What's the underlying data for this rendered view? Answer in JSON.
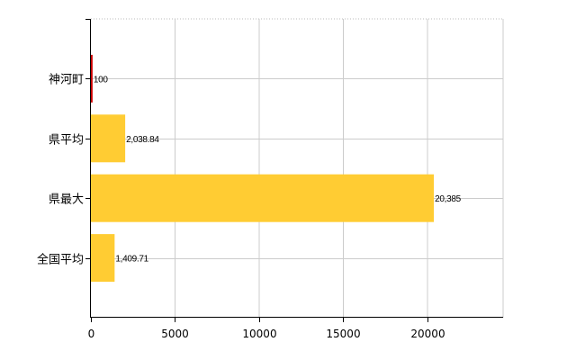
{
  "chart_data": {
    "type": "bar",
    "orientation": "horizontal",
    "categories": [
      "神河町",
      "県平均",
      "県最大",
      "全国平均"
    ],
    "values": [
      100,
      2038.84,
      20385,
      1409.71
    ],
    "value_labels": [
      "100",
      "2,038.84",
      "20,385",
      "1,409.71"
    ],
    "bar_colors": [
      "#cc0000",
      "#ffcc33",
      "#ffcc33",
      "#ffcc33"
    ],
    "x_ticks": [
      0,
      5000,
      10000,
      15000,
      20000
    ],
    "x_tick_labels": [
      "0",
      "5000",
      "10000",
      "15000",
      "20000"
    ],
    "xlim": [
      0,
      24500
    ],
    "grid": true,
    "title": "",
    "xlabel": "",
    "ylabel": ""
  }
}
